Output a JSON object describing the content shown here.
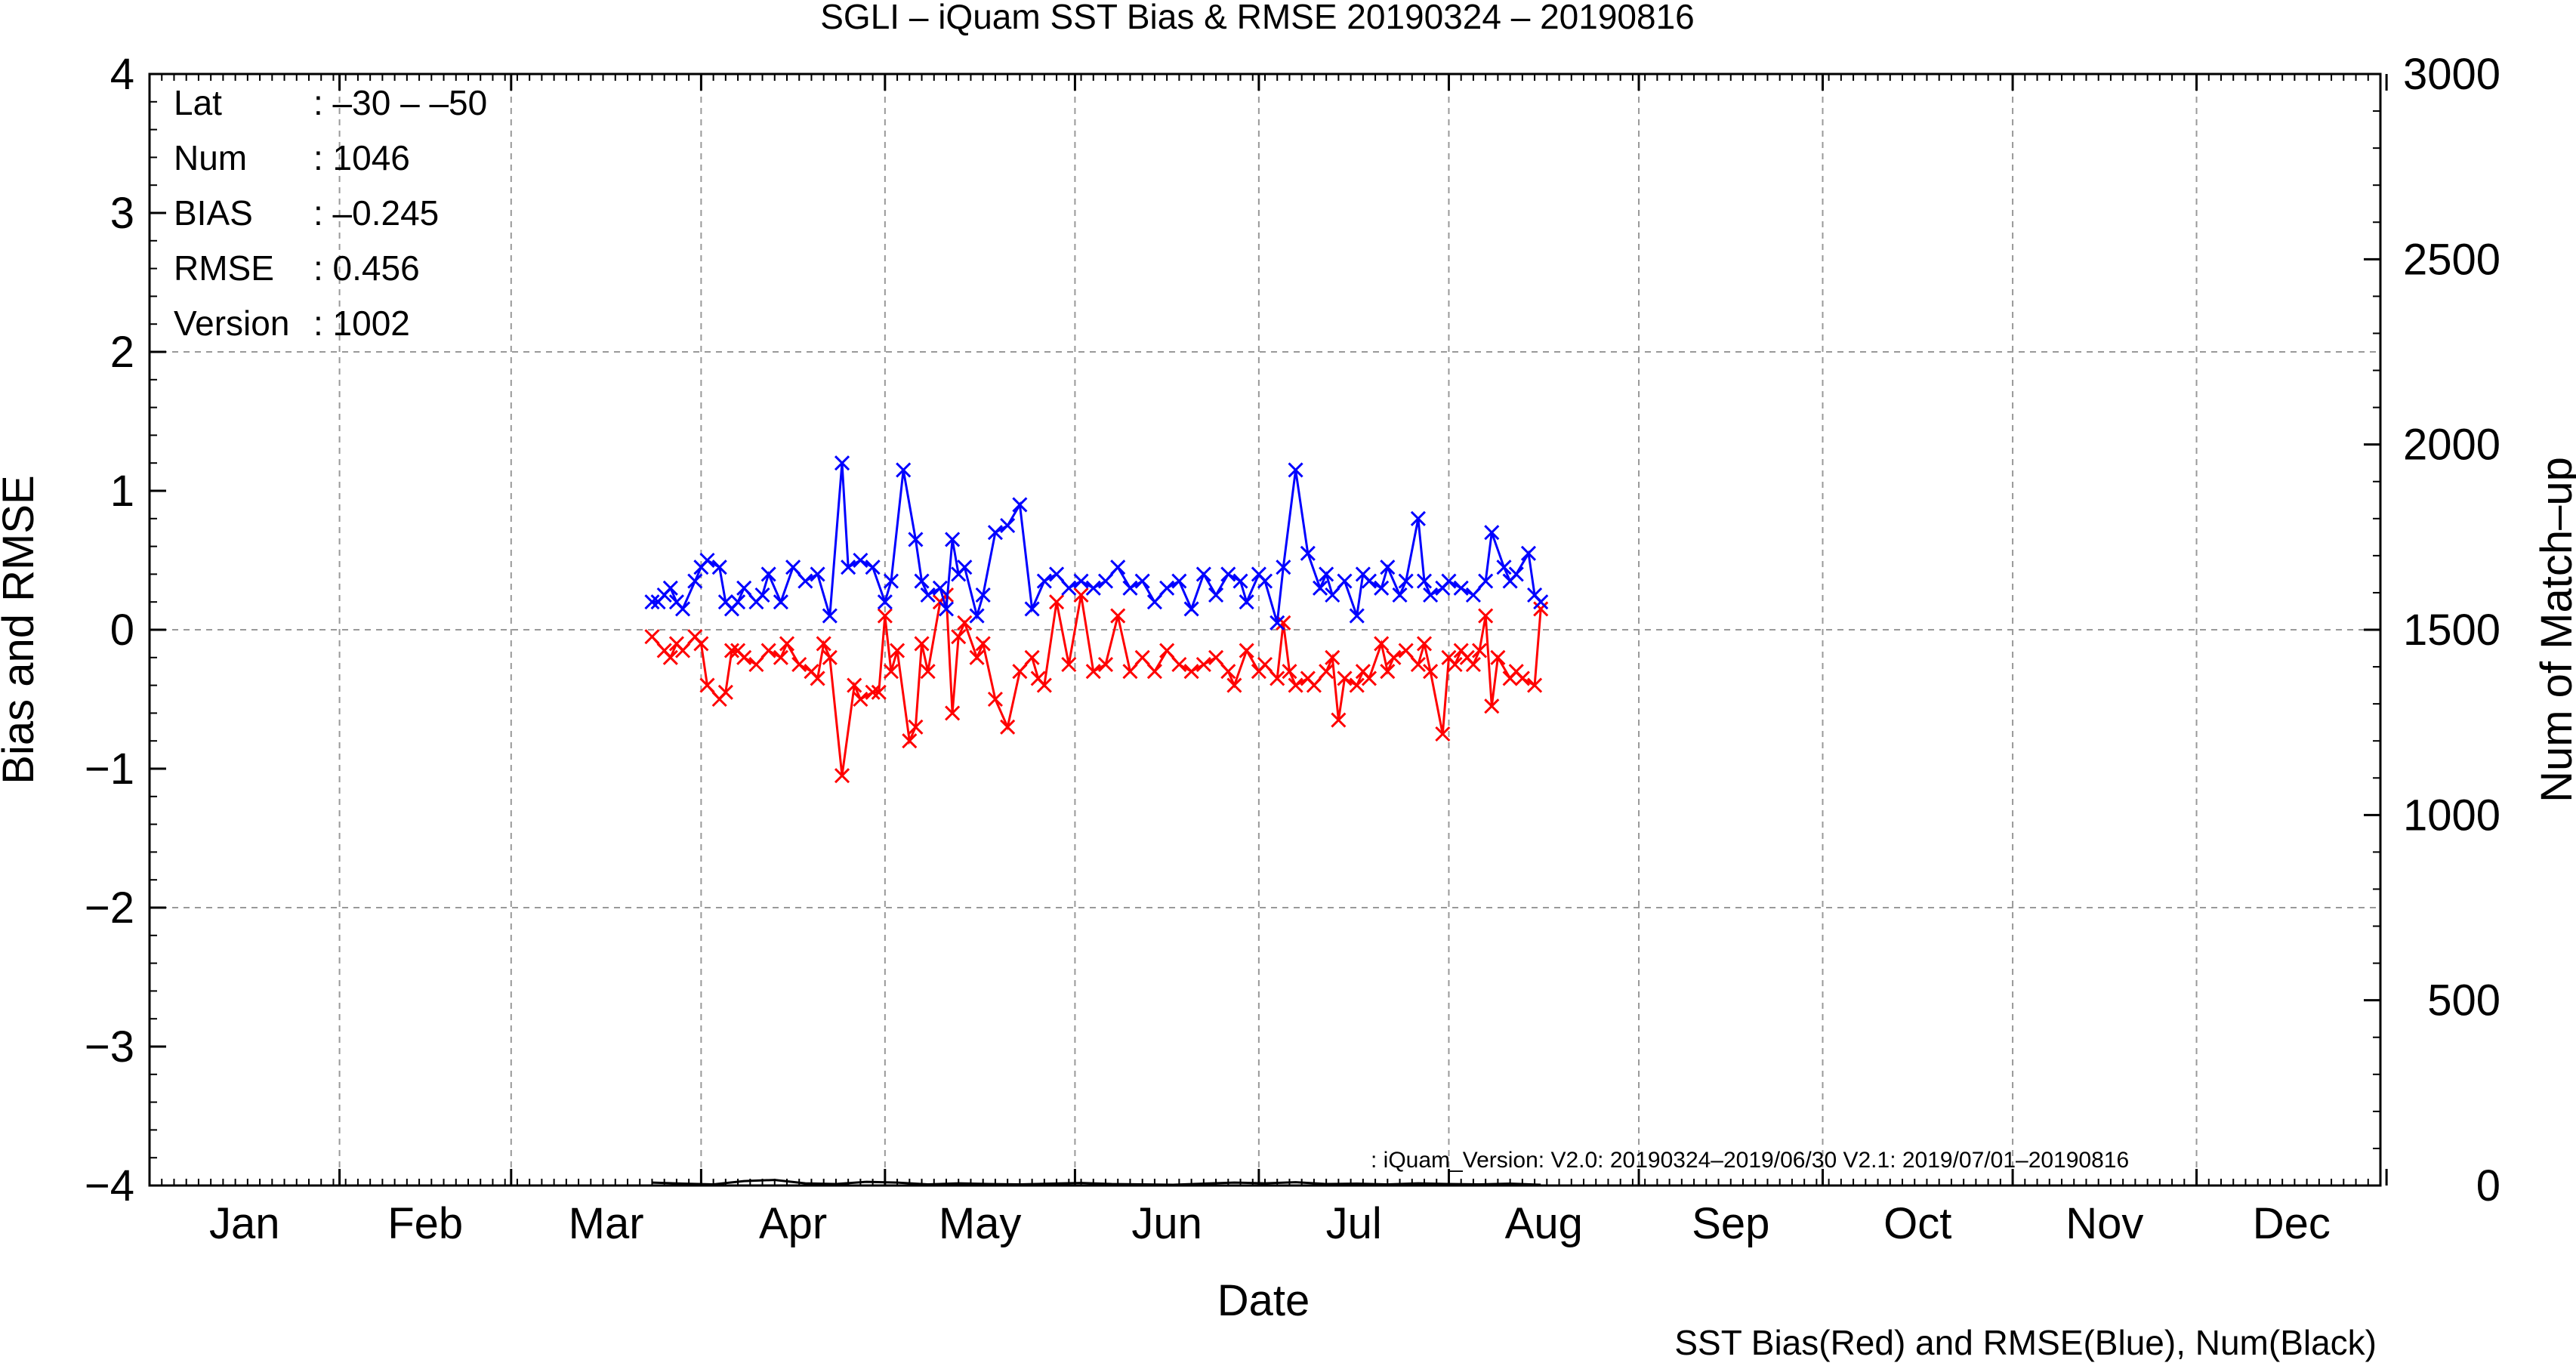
{
  "title": "SGLI – iQuam  SST Bias & RMSE 20190324 – 20190816",
  "info": {
    "rows": [
      {
        "label": "Lat",
        "value": ": –30 – –50"
      },
      {
        "label": "Num",
        "value": ": 1046"
      },
      {
        "label": "BIAS",
        "value": ": –0.245"
      },
      {
        "label": "RMSE",
        "value": ": 0.456"
      },
      {
        "label": "Version",
        "value": ": 1002"
      }
    ]
  },
  "note": ": iQuam_Version: V2.0: 20190324–2019/06/30 V2.1: 2019/07/01–20190816",
  "footer": "SST Bias(Red) and RMSE(Blue), Num(Black)",
  "colors": {
    "bias": "#ff0000",
    "rmse": "#0000ff",
    "num": "#000000",
    "grid": "#999999"
  },
  "chart_data": {
    "type": "line",
    "title": "SGLI – iQuam  SST Bias & RMSE 20190324 – 20190816",
    "xlabel": "Date",
    "ylabel": "Bias and RMSE",
    "y2label": "Num of Match–up",
    "x_tick_labels": [
      "Jan",
      "Feb",
      "Mar",
      "Apr",
      "May",
      "Jun",
      "Jul",
      "Aug",
      "Sep",
      "Oct",
      "Nov",
      "Dec"
    ],
    "y_ticks": [
      "4",
      "3",
      "2",
      "1",
      "0",
      "−1",
      "−2",
      "−3",
      "−4"
    ],
    "y2_ticks": [
      "3000",
      "2500",
      "2000",
      "1500",
      "1000",
      "500",
      "0"
    ],
    "xlim": [
      1,
      365
    ],
    "ylim": [
      -4,
      4
    ],
    "y2lim": [
      0,
      3000
    ],
    "grid": true,
    "x_unit": "day of year 2019",
    "series": [
      {
        "name": "Bias",
        "color": "#ff0000",
        "axis": "left",
        "x": [
          83,
          85,
          86,
          87,
          88,
          90,
          91,
          92,
          94,
          95,
          96,
          97,
          98,
          100,
          102,
          104,
          105,
          107,
          109,
          110,
          111,
          112,
          114,
          116,
          117,
          119,
          120,
          121,
          122,
          123,
          125,
          126,
          127,
          128,
          130,
          131,
          132,
          133,
          134,
          136,
          137,
          139,
          141,
          143,
          145,
          146,
          147,
          149,
          151,
          153,
          155,
          157,
          159,
          161,
          163,
          165,
          167,
          169,
          171,
          173,
          175,
          177,
          178,
          180,
          182,
          183,
          185,
          186,
          187,
          188,
          190,
          191,
          193,
          194,
          195,
          196,
          198,
          199,
          200,
          202,
          203,
          204,
          206,
          208,
          209,
          210,
          212,
          213,
          214,
          215,
          216,
          217,
          218,
          219,
          220,
          221,
          223,
          224,
          225,
          227,
          228
        ],
        "y": [
          -0.05,
          -0.15,
          -0.2,
          -0.1,
          -0.15,
          -0.05,
          -0.1,
          -0.4,
          -0.5,
          -0.45,
          -0.15,
          -0.15,
          -0.2,
          -0.25,
          -0.15,
          -0.2,
          -0.1,
          -0.25,
          -0.3,
          -0.35,
          -0.1,
          -0.2,
          -1.05,
          -0.4,
          -0.5,
          -0.45,
          -0.45,
          0.1,
          -0.3,
          -0.15,
          -0.8,
          -0.7,
          -0.1,
          -0.3,
          0.2,
          0.25,
          -0.6,
          -0.05,
          0.05,
          -0.2,
          -0.1,
          -0.5,
          -0.7,
          -0.3,
          -0.2,
          -0.35,
          -0.4,
          0.2,
          -0.25,
          0.25,
          -0.3,
          -0.25,
          0.1,
          -0.3,
          -0.2,
          -0.3,
          -0.15,
          -0.25,
          -0.3,
          -0.25,
          -0.2,
          -0.3,
          -0.4,
          -0.15,
          -0.3,
          -0.25,
          -0.35,
          0.05,
          -0.3,
          -0.4,
          -0.35,
          -0.4,
          -0.3,
          -0.2,
          -0.65,
          -0.35,
          -0.4,
          -0.3,
          -0.35,
          -0.1,
          -0.3,
          -0.2,
          -0.15,
          -0.25,
          -0.1,
          -0.3,
          -0.75,
          -0.2,
          -0.25,
          -0.15,
          -0.2,
          -0.25,
          -0.15,
          0.1,
          -0.55,
          -0.2,
          -0.35,
          -0.3,
          -0.35,
          -0.4,
          0.15
        ],
        "markers": "x"
      },
      {
        "name": "RMSE",
        "color": "#0000ff",
        "axis": "left",
        "x": [
          83,
          84,
          85,
          86,
          87,
          88,
          90,
          91,
          92,
          94,
          95,
          96,
          97,
          98,
          100,
          101,
          102,
          104,
          106,
          108,
          110,
          112,
          114,
          115,
          117,
          119,
          121,
          122,
          124,
          126,
          127,
          128,
          130,
          131,
          132,
          133,
          134,
          136,
          137,
          139,
          141,
          143,
          145,
          147,
          149,
          151,
          153,
          155,
          157,
          159,
          161,
          163,
          165,
          167,
          169,
          171,
          173,
          175,
          177,
          179,
          180,
          182,
          183,
          185,
          186,
          188,
          190,
          192,
          193,
          194,
          196,
          198,
          199,
          200,
          202,
          203,
          205,
          206,
          208,
          209,
          210,
          212,
          213,
          215,
          217,
          219,
          220,
          222,
          223,
          224,
          226,
          227,
          228
        ],
        "y": [
          0.2,
          0.2,
          0.25,
          0.3,
          0.2,
          0.15,
          0.35,
          0.45,
          0.5,
          0.45,
          0.2,
          0.15,
          0.2,
          0.3,
          0.2,
          0.25,
          0.4,
          0.2,
          0.45,
          0.35,
          0.4,
          0.1,
          1.2,
          0.45,
          0.5,
          0.45,
          0.2,
          0.35,
          1.15,
          0.65,
          0.35,
          0.25,
          0.3,
          0.15,
          0.65,
          0.4,
          0.45,
          0.1,
          0.25,
          0.7,
          0.75,
          0.9,
          0.15,
          0.35,
          0.4,
          0.3,
          0.35,
          0.3,
          0.35,
          0.45,
          0.3,
          0.35,
          0.2,
          0.3,
          0.35,
          0.15,
          0.4,
          0.25,
          0.4,
          0.35,
          0.2,
          0.4,
          0.35,
          0.05,
          0.45,
          1.15,
          0.55,
          0.3,
          0.4,
          0.25,
          0.35,
          0.1,
          0.4,
          0.35,
          0.3,
          0.45,
          0.25,
          0.35,
          0.8,
          0.35,
          0.25,
          0.3,
          0.35,
          0.3,
          0.25,
          0.35,
          0.7,
          0.45,
          0.35,
          0.4,
          0.55,
          0.25,
          0.2
        ],
        "markers": "x"
      },
      {
        "name": "Num",
        "color": "#000000",
        "axis": "right",
        "x": [
          83,
          88,
          93,
          98,
          103,
          108,
          113,
          118,
          123,
          128,
          133,
          138,
          143,
          148,
          153,
          158,
          163,
          168,
          173,
          178,
          183,
          188,
          193,
          198,
          203,
          208,
          213,
          218,
          223,
          228
        ],
        "y": [
          8,
          5,
          3,
          12,
          15,
          6,
          4,
          10,
          8,
          3,
          6,
          4,
          3,
          5,
          7,
          4,
          3,
          2,
          5,
          8,
          6,
          9,
          4,
          5,
          3,
          6,
          4,
          3,
          5,
          2
        ]
      }
    ]
  }
}
